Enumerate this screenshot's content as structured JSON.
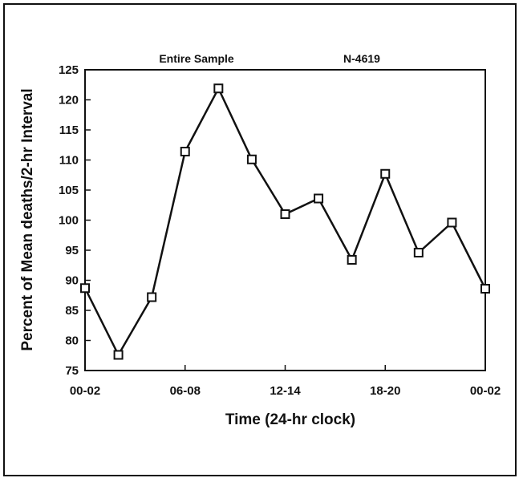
{
  "chart_data": {
    "type": "line",
    "header_left": "Entire Sample",
    "header_right": "N-4619",
    "xlabel": "Time (24-hr clock)",
    "ylabel": "Percent of Mean deaths/2-hr Interval",
    "ylim": [
      75,
      125
    ],
    "yticks": [
      75,
      80,
      85,
      90,
      95,
      100,
      105,
      110,
      115,
      120,
      125
    ],
    "xlim": [
      0,
      24
    ],
    "xticks": [
      {
        "x": 0,
        "label": "00-02"
      },
      {
        "x": 6,
        "label": "06-08"
      },
      {
        "x": 12,
        "label": "12-14"
      },
      {
        "x": 18,
        "label": "18-20"
      },
      {
        "x": 24,
        "label": "00-02"
      }
    ],
    "x": [
      0,
      2,
      4,
      6,
      8,
      10,
      12,
      14,
      16,
      18,
      20,
      22,
      24
    ],
    "values": [
      88.7,
      77.6,
      87.2,
      111.4,
      121.9,
      110.1,
      101.0,
      103.6,
      93.4,
      107.7,
      94.6,
      99.6,
      88.6
    ],
    "marker": "square",
    "grid": false,
    "color": "#111111"
  }
}
